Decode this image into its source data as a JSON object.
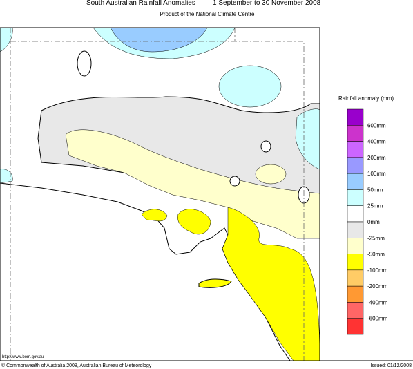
{
  "header": {
    "title": "South Australian Rainfall Anomalies",
    "period": "1 September to 30 November 2008",
    "subtitle": "Product of the National Climate Centre"
  },
  "legend": {
    "title": "Rainfall anomaly (mm)",
    "labels": [
      "600mm",
      "400mm",
      "200mm",
      "100mm",
      "50mm",
      "25mm",
      "0mm",
      "-25mm",
      "-50mm",
      "-100mm",
      "-200mm",
      "-400mm",
      "-600mm"
    ],
    "colors": [
      "#9900cc",
      "#cc33cc",
      "#cc66ff",
      "#9999ff",
      "#99ccff",
      "#ccffff",
      "#ffffff",
      "#e8e8e8",
      "#ffffcc",
      "#ffff00",
      "#ffcc66",
      "#ff9933",
      "#ff6666",
      "#ff3333"
    ]
  },
  "footer": {
    "url": "http://www.bom.gov.au",
    "copyright": "© Commonwealth of Australia 2008, Australian Bureau of Meteorology",
    "issued": "Issued: 01/12/2008"
  }
}
